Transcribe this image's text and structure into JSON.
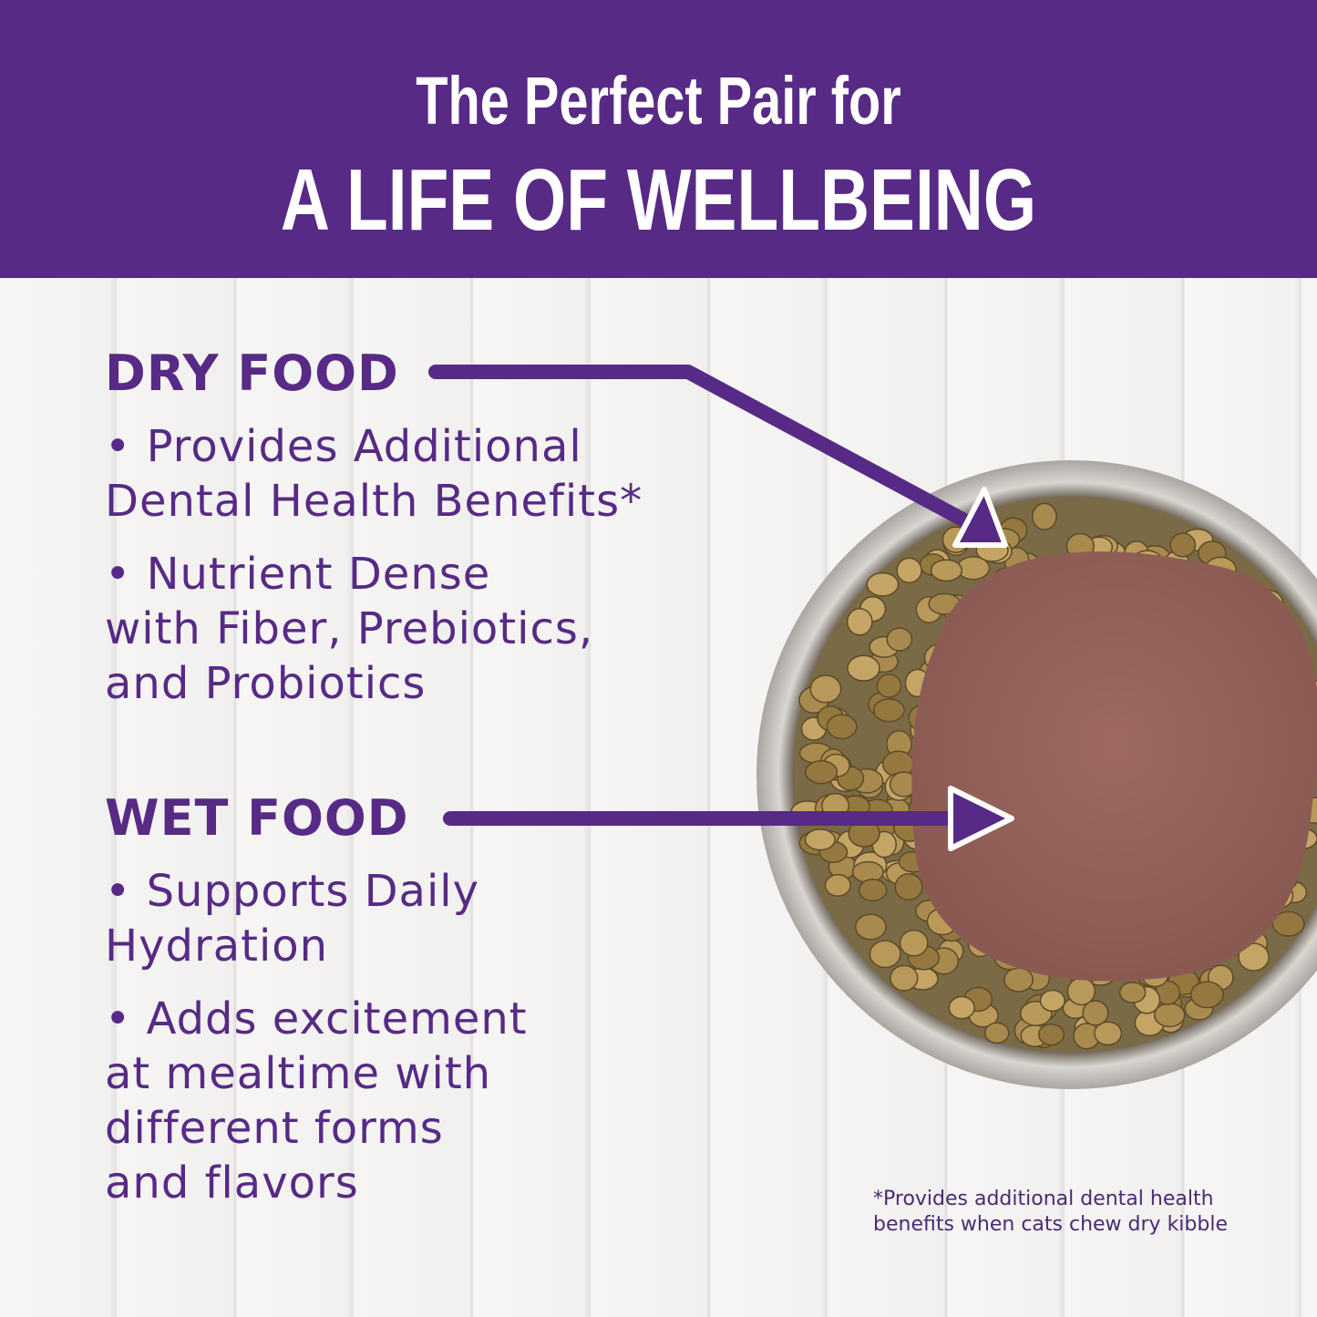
{
  "header": {
    "line1": "The Perfect Pair for",
    "line2": "A LIFE OF WELLBEING"
  },
  "dry": {
    "heading": "DRY FOOD",
    "lines": [
      "• Provides Additional",
      "Dental Health Benefits*",
      "• Nutrient Dense",
      "with Fiber, Prebiotics,",
      "and Probiotics"
    ]
  },
  "wet": {
    "heading": "WET FOOD",
    "lines": [
      "• Supports Daily",
      "Hydration",
      "• Adds excitement",
      "at mealtime with",
      "different forms",
      "and flavors"
    ]
  },
  "footnote": {
    "line1": "*Provides additional dental health",
    "line2": "benefits when cats chew dry kibble"
  },
  "colors": {
    "brand_purple": "#572a86",
    "background": "#f4f3f2"
  }
}
